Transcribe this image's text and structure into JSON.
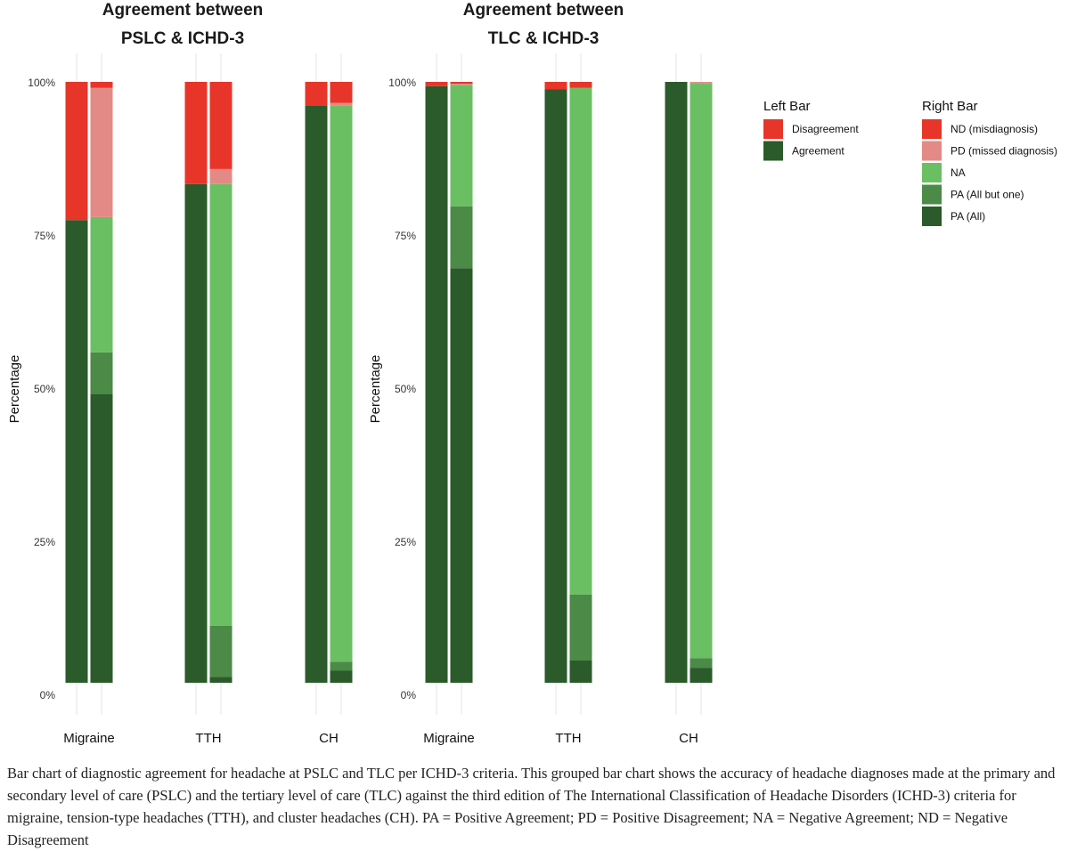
{
  "caption": "Bar chart of diagnostic agreement for headache at PSLC and TLC per ICHD-3 criteria. This grouped bar chart shows the accuracy of headache diagnoses made at the primary and secondary level of care (PSLC) and the tertiary level of care (TLC) against the third edition of The International Classification of Headache Disorders (ICHD-3) criteria for migraine, tension-type headaches (TTH), and cluster headaches (CH). PA = Positive Agreement; PD = Positive Disagreement; NA = Negative Agreement; ND = Negative Disagreement",
  "colors": {
    "Disagreement": "#e8352a",
    "Agreement": "#2b5a2b",
    "ND (misdiagnosis)": "#e8352a",
    "PD (missed diagnosis)": "#e48a86",
    "NA": "#6bbf63",
    "PA (All but one)": "#4b8a47",
    "PA (All)": "#2b5a2b"
  },
  "chart_data": [
    {
      "type": "bar",
      "stacked": true,
      "title_line1": "Agreement between",
      "title_line2": "PSLC & ICHD-3",
      "ylabel": "Percentage",
      "yticks": [
        "0%",
        "25%",
        "50%",
        "75%",
        "100%"
      ],
      "ylim": [
        0,
        100
      ],
      "categories": [
        "Migraine",
        "TTH",
        "CH"
      ],
      "left_bar": [
        {
          "Agreement": 77,
          "Disagreement": 23
        },
        {
          "Agreement": 83,
          "Disagreement": 17
        },
        {
          "Agreement": 96,
          "Disagreement": 4
        }
      ],
      "right_bar": [
        {
          "PA (All)": 48,
          "PA (All but one)": 7,
          "NA": 22.5,
          "PD (missed diagnosis)": 21.5,
          "ND (misdiagnosis)": 1
        },
        {
          "PA (All)": 1,
          "PA (All but one)": 8.5,
          "NA": 73.5,
          "PD (missed diagnosis)": 2.5,
          "ND (misdiagnosis)": 14.5
        },
        {
          "PA (All)": 2,
          "PA (All but one)": 1.5,
          "NA": 92.6,
          "PD (missed diagnosis)": 0.4,
          "ND (misdiagnosis)": 3.5
        }
      ]
    },
    {
      "type": "bar",
      "stacked": true,
      "title_line1": "Agreement between",
      "title_line2": "TLC & ICHD-3",
      "ylabel": "Percentage",
      "yticks": [
        "0%",
        "25%",
        "50%",
        "75%",
        "100%"
      ],
      "ylim": [
        0,
        100
      ],
      "categories": [
        "Migraine",
        "TTH",
        "CH"
      ],
      "left_bar": [
        {
          "Agreement": 99.3,
          "Disagreement": 0.7
        },
        {
          "Agreement": 98.8,
          "Disagreement": 1.2
        },
        {
          "Agreement": 100,
          "Disagreement": 0
        }
      ],
      "right_bar": [
        {
          "PA (All)": 69,
          "PA (All but one)": 10.3,
          "NA": 20.2,
          "PD (missed diagnosis)": 0.2,
          "ND (misdiagnosis)": 0.3
        },
        {
          "PA (All)": 3.7,
          "PA (All but one)": 11,
          "NA": 84.3,
          "PD (missed diagnosis)": 0,
          "ND (misdiagnosis)": 1
        },
        {
          "PA (All)": 2.5,
          "PA (All but one)": 1.6,
          "NA": 95.7,
          "PD (missed diagnosis)": 0.2,
          "ND (misdiagnosis)": 0
        }
      ]
    }
  ],
  "legend": {
    "left_title": "Left Bar",
    "left_items": [
      "Disagreement",
      "Agreement"
    ],
    "right_title": "Right Bar",
    "right_items": [
      "ND (misdiagnosis)",
      "PD (missed diagnosis)",
      "NA",
      "PA (All but one)",
      "PA (All)"
    ]
  }
}
